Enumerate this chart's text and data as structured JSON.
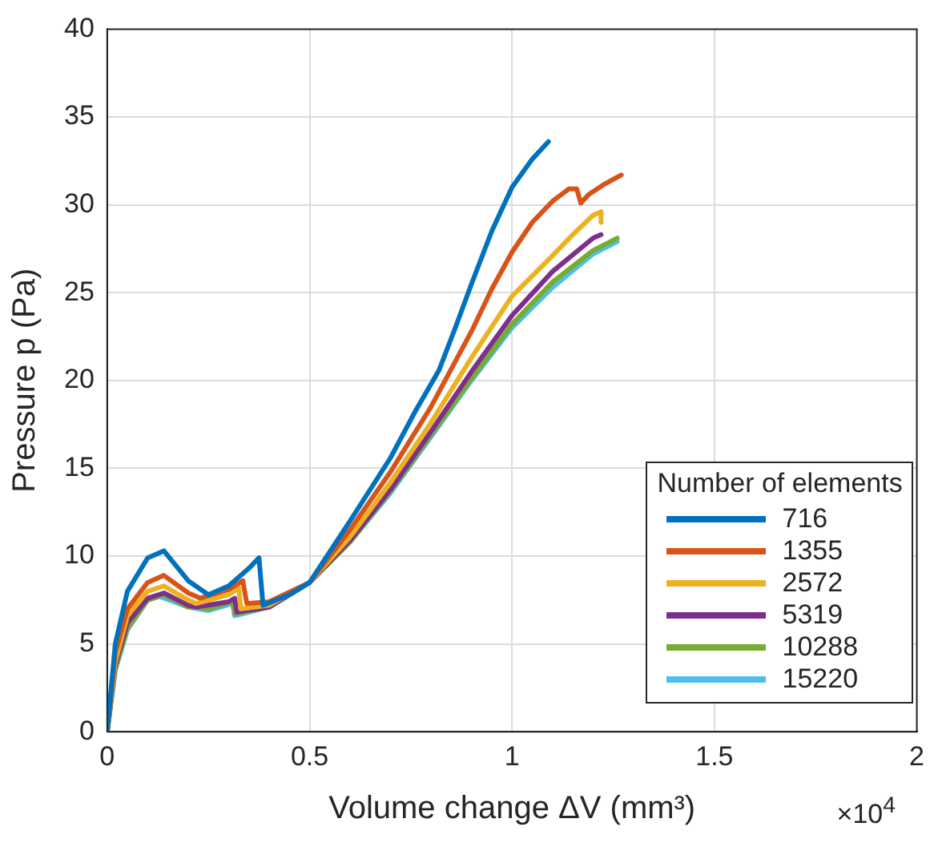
{
  "chart_data": {
    "type": "line",
    "xlabel": "Volume change ΔV (mm³)",
    "ylabel": "Pressure p (Pa)",
    "legend_title": "Number of elements",
    "annotations": [
      "×10$^{4}$"
    ],
    "xlim": [
      0,
      2
    ],
    "xticks": [
      0,
      0.5,
      1,
      1.5,
      2
    ],
    "ylim": [
      0,
      40
    ],
    "yticks": [
      0,
      5,
      10,
      15,
      20,
      25,
      30,
      35,
      40
    ],
    "grid": true,
    "legend": "bottom right",
    "marker": "none",
    "line_style": "solid",
    "series": [
      {
        "name": "716",
        "color": "#0072bd",
        "x": [
          0,
          0.02,
          0.05,
          0.1,
          0.14,
          0.2,
          0.25,
          0.3,
          0.35,
          0.375,
          0.385,
          0.45,
          0.5,
          0.6,
          0.7,
          0.76,
          0.82,
          0.86,
          0.9,
          0.95,
          1.0,
          1.05,
          1.09
        ],
        "values": [
          0,
          5,
          8,
          9.9,
          10.3,
          8.6,
          7.8,
          8.3,
          9.3,
          9.9,
          7.2,
          7.8,
          8.5,
          12.0,
          15.6,
          18.2,
          20.6,
          23,
          25.5,
          28.5,
          31.0,
          32.6,
          33.6
        ]
      },
      {
        "name": "1355",
        "color": "#d95319",
        "x": [
          0,
          0.02,
          0.05,
          0.1,
          0.14,
          0.2,
          0.23,
          0.3,
          0.335,
          0.345,
          0.4,
          0.5,
          0.6,
          0.7,
          0.8,
          0.9,
          0.95,
          1.0,
          1.05,
          1.1,
          1.14,
          1.16,
          1.17,
          1.19,
          1.23,
          1.27
        ],
        "values": [
          0,
          4.5,
          7,
          8.5,
          8.9,
          7.9,
          7.6,
          8.1,
          8.6,
          7.3,
          7.4,
          8.5,
          11.5,
          14.8,
          18.5,
          22.8,
          25.2,
          27.3,
          29.0,
          30.2,
          30.9,
          30.9,
          30.1,
          30.6,
          31.2,
          31.7
        ]
      },
      {
        "name": "2572",
        "color": "#edb120",
        "x": [
          0,
          0.02,
          0.05,
          0.1,
          0.14,
          0.2,
          0.22,
          0.3,
          0.325,
          0.33,
          0.4,
          0.5,
          0.6,
          0.7,
          0.8,
          0.9,
          1.0,
          1.1,
          1.15,
          1.2,
          1.22,
          1.22
        ],
        "values": [
          0,
          4,
          6.6,
          8,
          8.3,
          7.5,
          7.3,
          7.8,
          8.2,
          7.0,
          7.2,
          8.5,
          11.1,
          14.2,
          17.6,
          21.3,
          24.8,
          27.1,
          28.3,
          29.4,
          29.6,
          29.0
        ]
      },
      {
        "name": "5319",
        "color": "#7e2f8e",
        "x": [
          0,
          0.02,
          0.05,
          0.1,
          0.14,
          0.2,
          0.22,
          0.3,
          0.315,
          0.32,
          0.4,
          0.5,
          0.6,
          0.7,
          0.8,
          0.9,
          1.0,
          1.1,
          1.2,
          1.22
        ],
        "values": [
          0,
          3.8,
          6.2,
          7.6,
          7.9,
          7.2,
          7.1,
          7.4,
          7.6,
          6.8,
          7.1,
          8.5,
          10.9,
          13.8,
          17.1,
          20.5,
          23.7,
          26.2,
          28.1,
          28.3
        ]
      },
      {
        "name": "10288",
        "color": "#77ac30",
        "x": [
          0,
          0.02,
          0.05,
          0.1,
          0.14,
          0.2,
          0.25,
          0.31,
          0.315,
          0.4,
          0.5,
          0.6,
          0.7,
          0.8,
          0.9,
          1.0,
          1.1,
          1.2,
          1.26
        ],
        "values": [
          0,
          3.6,
          5.9,
          7.5,
          7.8,
          7.1,
          7.0,
          7.4,
          6.7,
          7.1,
          8.5,
          10.8,
          13.7,
          16.9,
          20.1,
          23.2,
          25.6,
          27.4,
          28.1
        ]
      },
      {
        "name": "15220",
        "color": "#4dbeee",
        "x": [
          0,
          0.02,
          0.05,
          0.1,
          0.13,
          0.2,
          0.25,
          0.31,
          0.315,
          0.4,
          0.5,
          0.6,
          0.7,
          0.8,
          0.9,
          1.0,
          1.1,
          1.2,
          1.26
        ],
        "values": [
          0,
          3.5,
          5.8,
          7.5,
          7.7,
          7.1,
          6.9,
          7.3,
          6.6,
          7.1,
          8.5,
          10.8,
          13.6,
          16.8,
          20.0,
          23.0,
          25.3,
          27.2,
          27.9
        ]
      }
    ]
  }
}
